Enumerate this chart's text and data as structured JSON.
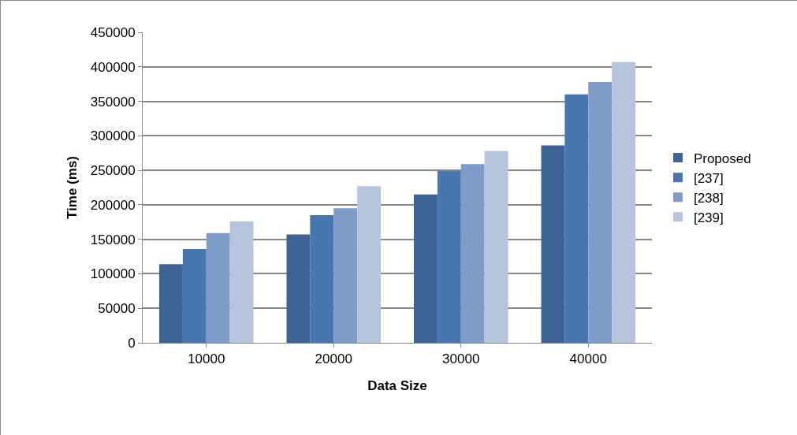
{
  "chart_data": {
    "type": "bar",
    "xlabel": "Data Size",
    "ylabel": "Time (ms)",
    "categories": [
      "10000",
      "20000",
      "30000",
      "40000"
    ],
    "series": [
      {
        "name": "Proposed",
        "color": "#3d6495",
        "values": [
          114000,
          157000,
          215000,
          286000
        ]
      },
      {
        "name": "[237]",
        "color": "#4876ae",
        "values": [
          136000,
          185000,
          249000,
          360000
        ]
      },
      {
        "name": "[238]",
        "color": "#7f9cc8",
        "values": [
          159000,
          195000,
          259000,
          378000
        ]
      },
      {
        "name": "[239]",
        "color": "#b6c4de",
        "values": [
          176000,
          227000,
          278000,
          407000
        ]
      }
    ],
    "ylim": [
      0,
      450000
    ],
    "yticks": [
      0,
      50000,
      100000,
      150000,
      200000,
      250000,
      300000,
      350000,
      400000,
      450000
    ],
    "grid": "y",
    "legend": "right"
  }
}
